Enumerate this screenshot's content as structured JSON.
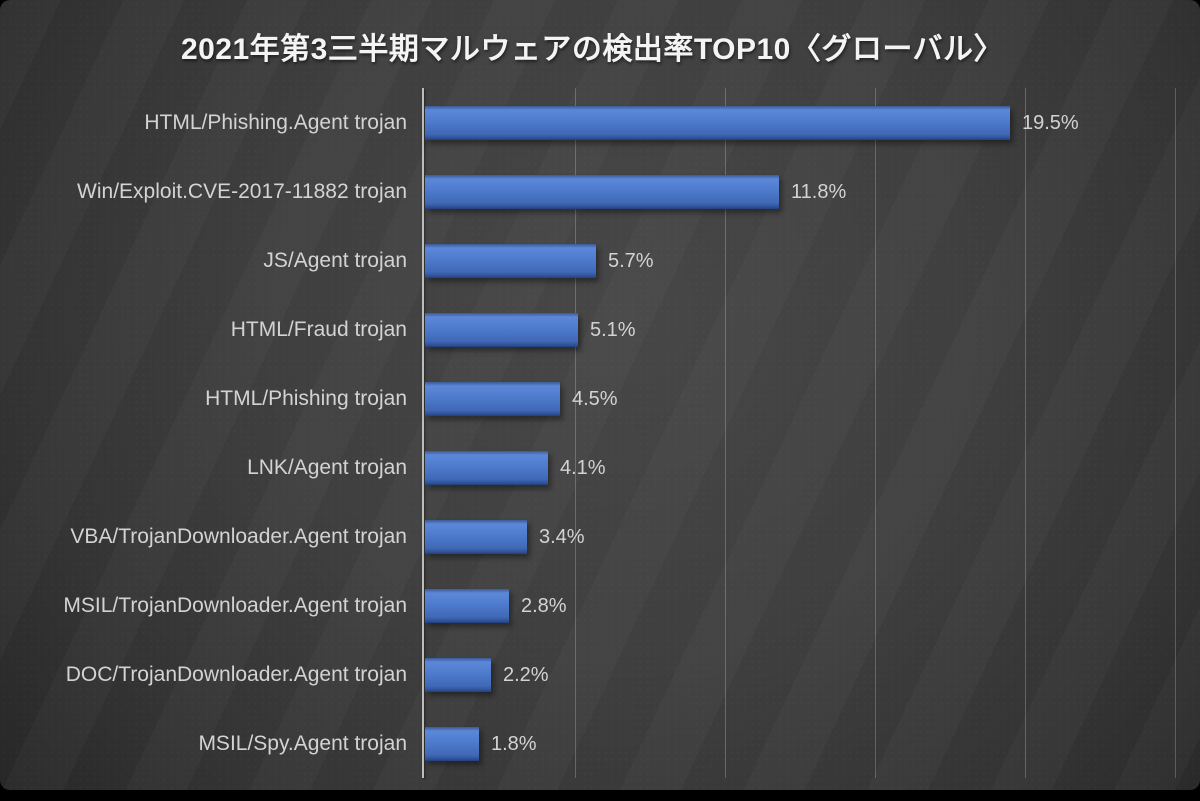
{
  "slide": {
    "title": "2021年第3三半期マルウェアの検出率TOP10〈グローバル〉"
  },
  "chart_data": {
    "type": "bar",
    "orientation": "horizontal",
    "title": "2021年第3三半期マルウェアの検出率TOP10〈グローバル〉",
    "categories": [
      "HTML/Phishing.Agent trojan",
      "Win/Exploit.CVE-2017-11882 trojan",
      "JS/Agent trojan",
      "HTML/Fraud trojan",
      "HTML/Phishing trojan",
      "LNK/Agent trojan",
      "VBA/TrojanDownloader.Agent trojan",
      "MSIL/TrojanDownloader.Agent trojan",
      "DOC/TrojanDownloader.Agent trojan",
      "MSIL/Spy.Agent trojan"
    ],
    "values": [
      19.5,
      11.8,
      5.7,
      5.1,
      4.5,
      4.1,
      3.4,
      2.8,
      2.2,
      1.8
    ],
    "value_labels": [
      "19.5%",
      "11.8%",
      "5.7%",
      "5.1%",
      "4.5%",
      "4.1%",
      "3.4%",
      "2.8%",
      "2.2%",
      "1.8%"
    ],
    "xlabel": "",
    "ylabel": "",
    "xlim": [
      0,
      25
    ],
    "gridline_interval": 5,
    "grid": true,
    "legend": null,
    "bar_color": "#4472c4",
    "background_color": "#3a3a3a",
    "text_color": "#d3d3d3",
    "title_color": "#f4f4f4",
    "axis_color": "#bdbdbd"
  }
}
